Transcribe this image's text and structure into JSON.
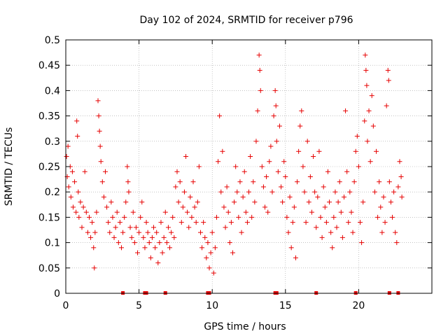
{
  "chart_data": {
    "type": "scatter",
    "title": "Day 102 of 2024, SRMTID for receiver p796",
    "xlabel": "GPS time / hours",
    "ylabel": "SRMTID / TECUs",
    "xlim": [
      0,
      25
    ],
    "ylim": [
      0,
      0.5
    ],
    "x_ticks": [
      0,
      5,
      10,
      15,
      20
    ],
    "x_tick_labels": [
      "0",
      "5",
      "10",
      "15",
      "20"
    ],
    "y_ticks": [
      0,
      0.05,
      0.1,
      0.15,
      0.2,
      0.25,
      0.3,
      0.35,
      0.4,
      0.45,
      0.5
    ],
    "y_tick_labels": [
      "0",
      "0.05",
      "0.1",
      "0.15",
      "0.2",
      "0.25",
      "0.3",
      "0.35",
      "0.4",
      "0.45",
      "0.5"
    ],
    "grid": true,
    "marker": "+",
    "color": "#e60000",
    "series": [
      {
        "name": "SRMTID",
        "points": [
          [
            0.05,
            0.27
          ],
          [
            0.1,
            0.23
          ],
          [
            0.15,
            0.29
          ],
          [
            0.2,
            0.21
          ],
          [
            0.3,
            0.25
          ],
          [
            0.35,
            0.19
          ],
          [
            0.45,
            0.24
          ],
          [
            0.5,
            0.17
          ],
          [
            0.6,
            0.22
          ],
          [
            0.7,
            0.16
          ],
          [
            0.75,
            0.34
          ],
          [
            0.8,
            0.31
          ],
          [
            0.85,
            0.2
          ],
          [
            0.9,
            0.15
          ],
          [
            1.0,
            0.18
          ],
          [
            1.1,
            0.13
          ],
          [
            1.2,
            0.17
          ],
          [
            1.3,
            0.24
          ],
          [
            1.4,
            0.16
          ],
          [
            1.5,
            0.12
          ],
          [
            1.6,
            0.15
          ],
          [
            1.7,
            0.11
          ],
          [
            1.8,
            0.14
          ],
          [
            1.9,
            0.09
          ],
          [
            1.95,
            0.05
          ],
          [
            2.0,
            0.12
          ],
          [
            2.1,
            0.16
          ],
          [
            2.2,
            0.38
          ],
          [
            2.25,
            0.35
          ],
          [
            2.3,
            0.32
          ],
          [
            2.35,
            0.29
          ],
          [
            2.4,
            0.26
          ],
          [
            2.5,
            0.22
          ],
          [
            2.6,
            0.19
          ],
          [
            2.7,
            0.24
          ],
          [
            2.8,
            0.17
          ],
          [
            2.9,
            0.14
          ],
          [
            3.0,
            0.12
          ],
          [
            3.1,
            0.18
          ],
          [
            3.2,
            0.15
          ],
          [
            3.3,
            0.11
          ],
          [
            3.4,
            0.13
          ],
          [
            3.5,
            0.16
          ],
          [
            3.6,
            0.1
          ],
          [
            3.7,
            0.14
          ],
          [
            3.8,
            0.09
          ],
          [
            3.9,
            0.12
          ],
          [
            4.0,
            0.15
          ],
          [
            4.1,
            0.18
          ],
          [
            4.2,
            0.25
          ],
          [
            4.25,
            0.22
          ],
          [
            4.3,
            0.2
          ],
          [
            4.4,
            0.13
          ],
          [
            4.5,
            0.11
          ],
          [
            4.6,
            0.16
          ],
          [
            4.7,
            0.1
          ],
          [
            4.8,
            0.13
          ],
          [
            4.9,
            0.08
          ],
          [
            5.0,
            0.12
          ],
          [
            5.1,
            0.15
          ],
          [
            5.2,
            0.18
          ],
          [
            5.3,
            0.11
          ],
          [
            5.4,
            0.09
          ],
          [
            5.5,
            0.14
          ],
          [
            5.6,
            0.12
          ],
          [
            5.7,
            0.1
          ],
          [
            5.8,
            0.07
          ],
          [
            5.9,
            0.11
          ],
          [
            6.0,
            0.13
          ],
          [
            6.1,
            0.09
          ],
          [
            6.2,
            0.12
          ],
          [
            6.3,
            0.06
          ],
          [
            6.4,
            0.1
          ],
          [
            6.5,
            0.14
          ],
          [
            6.6,
            0.08
          ],
          [
            6.7,
            0.11
          ],
          [
            6.8,
            0.16
          ],
          [
            6.9,
            0.1
          ],
          [
            7.0,
            0.13
          ],
          [
            7.1,
            0.09
          ],
          [
            7.2,
            0.12
          ],
          [
            7.3,
            0.15
          ],
          [
            7.4,
            0.11
          ],
          [
            7.5,
            0.21
          ],
          [
            7.6,
            0.24
          ],
          [
            7.7,
            0.18
          ],
          [
            7.8,
            0.22
          ],
          [
            7.9,
            0.14
          ],
          [
            8.0,
            0.17
          ],
          [
            8.1,
            0.2
          ],
          [
            8.2,
            0.27
          ],
          [
            8.3,
            0.16
          ],
          [
            8.4,
            0.13
          ],
          [
            8.5,
            0.19
          ],
          [
            8.6,
            0.15
          ],
          [
            8.7,
            0.22
          ],
          [
            8.8,
            0.17
          ],
          [
            8.9,
            0.14
          ],
          [
            9.0,
            0.18
          ],
          [
            9.1,
            0.25
          ],
          [
            9.2,
            0.12
          ],
          [
            9.3,
            0.09
          ],
          [
            9.4,
            0.14
          ],
          [
            9.5,
            0.11
          ],
          [
            9.6,
            0.07
          ],
          [
            9.7,
            0.1
          ],
          [
            9.8,
            0.05
          ],
          [
            9.9,
            0.08
          ],
          [
            10.0,
            0.12
          ],
          [
            10.1,
            0.04
          ],
          [
            10.2,
            0.09
          ],
          [
            10.3,
            0.15
          ],
          [
            10.4,
            0.26
          ],
          [
            10.5,
            0.35
          ],
          [
            10.6,
            0.2
          ],
          [
            10.7,
            0.28
          ],
          [
            10.8,
            0.17
          ],
          [
            10.9,
            0.13
          ],
          [
            11.0,
            0.21
          ],
          [
            11.1,
            0.16
          ],
          [
            11.2,
            0.1
          ],
          [
            11.3,
            0.14
          ],
          [
            11.4,
            0.08
          ],
          [
            11.5,
            0.18
          ],
          [
            11.6,
            0.25
          ],
          [
            11.7,
            0.2
          ],
          [
            11.8,
            0.15
          ],
          [
            11.9,
            0.22
          ],
          [
            12.0,
            0.12
          ],
          [
            12.1,
            0.19
          ],
          [
            12.2,
            0.24
          ],
          [
            12.3,
            0.16
          ],
          [
            12.4,
            0.14
          ],
          [
            12.5,
            0.2
          ],
          [
            12.6,
            0.27
          ],
          [
            12.7,
            0.15
          ],
          [
            12.8,
            0.22
          ],
          [
            12.9,
            0.18
          ],
          [
            13.0,
            0.3
          ],
          [
            13.1,
            0.36
          ],
          [
            13.2,
            0.47
          ],
          [
            13.25,
            0.44
          ],
          [
            13.3,
            0.4
          ],
          [
            13.4,
            0.25
          ],
          [
            13.5,
            0.21
          ],
          [
            13.6,
            0.17
          ],
          [
            13.7,
            0.23
          ],
          [
            13.8,
            0.16
          ],
          [
            13.9,
            0.26
          ],
          [
            14.0,
            0.29
          ],
          [
            14.1,
            0.2
          ],
          [
            14.2,
            0.35
          ],
          [
            14.3,
            0.4
          ],
          [
            14.35,
            0.37
          ],
          [
            14.4,
            0.3
          ],
          [
            14.5,
            0.24
          ],
          [
            14.6,
            0.33
          ],
          [
            14.7,
            0.21
          ],
          [
            14.8,
            0.18
          ],
          [
            14.9,
            0.26
          ],
          [
            15.0,
            0.23
          ],
          [
            15.1,
            0.15
          ],
          [
            15.2,
            0.12
          ],
          [
            15.3,
            0.19
          ],
          [
            15.4,
            0.09
          ],
          [
            15.5,
            0.14
          ],
          [
            15.6,
            0.17
          ],
          [
            15.7,
            0.07
          ],
          [
            15.8,
            0.22
          ],
          [
            15.9,
            0.28
          ],
          [
            16.0,
            0.33
          ],
          [
            16.1,
            0.36
          ],
          [
            16.2,
            0.25
          ],
          [
            16.3,
            0.2
          ],
          [
            16.4,
            0.14
          ],
          [
            16.5,
            0.3
          ],
          [
            16.6,
            0.18
          ],
          [
            16.7,
            0.23
          ],
          [
            16.8,
            0.16
          ],
          [
            16.9,
            0.27
          ],
          [
            17.0,
            0.2
          ],
          [
            17.1,
            0.13
          ],
          [
            17.2,
            0.19
          ],
          [
            17.3,
            0.28
          ],
          [
            17.4,
            0.15
          ],
          [
            17.5,
            0.11
          ],
          [
            17.6,
            0.21
          ],
          [
            17.7,
            0.17
          ],
          [
            17.8,
            0.14
          ],
          [
            17.9,
            0.24
          ],
          [
            18.0,
            0.18
          ],
          [
            18.1,
            0.12
          ],
          [
            18.2,
            0.09
          ],
          [
            18.3,
            0.15
          ],
          [
            18.4,
            0.2
          ],
          [
            18.5,
            0.13
          ],
          [
            18.6,
            0.18
          ],
          [
            18.7,
            0.22
          ],
          [
            18.8,
            0.16
          ],
          [
            18.9,
            0.11
          ],
          [
            19.0,
            0.19
          ],
          [
            19.1,
            0.36
          ],
          [
            19.2,
            0.24
          ],
          [
            19.3,
            0.14
          ],
          [
            19.4,
            0.2
          ],
          [
            19.5,
            0.16
          ],
          [
            19.6,
            0.12
          ],
          [
            19.7,
            0.22
          ],
          [
            19.8,
            0.28
          ],
          [
            19.9,
            0.31
          ],
          [
            20.0,
            0.25
          ],
          [
            20.1,
            0.14
          ],
          [
            20.2,
            0.1
          ],
          [
            20.3,
            0.18
          ],
          [
            20.4,
            0.34
          ],
          [
            20.45,
            0.47
          ],
          [
            20.5,
            0.44
          ],
          [
            20.55,
            0.41
          ],
          [
            20.6,
            0.3
          ],
          [
            20.7,
            0.36
          ],
          [
            20.8,
            0.26
          ],
          [
            20.9,
            0.39
          ],
          [
            21.0,
            0.33
          ],
          [
            21.1,
            0.2
          ],
          [
            21.2,
            0.28
          ],
          [
            21.3,
            0.15
          ],
          [
            21.4,
            0.22
          ],
          [
            21.5,
            0.17
          ],
          [
            21.6,
            0.12
          ],
          [
            21.7,
            0.19
          ],
          [
            21.8,
            0.14
          ],
          [
            21.9,
            0.37
          ],
          [
            22.0,
            0.44
          ],
          [
            22.05,
            0.42
          ],
          [
            22.1,
            0.22
          ],
          [
            22.2,
            0.18
          ],
          [
            22.3,
            0.15
          ],
          [
            22.4,
            0.2
          ],
          [
            22.5,
            0.12
          ],
          [
            22.6,
            0.1
          ],
          [
            22.7,
            0.21
          ],
          [
            22.8,
            0.26
          ],
          [
            22.9,
            0.23
          ],
          [
            22.95,
            0.19
          ]
        ]
      }
    ],
    "zero_marks_x": [
      3.9,
      5.4,
      5.5,
      6.8,
      9.7,
      9.8,
      14.3,
      14.4,
      17.1,
      19.8,
      22.1,
      22.7
    ]
  }
}
